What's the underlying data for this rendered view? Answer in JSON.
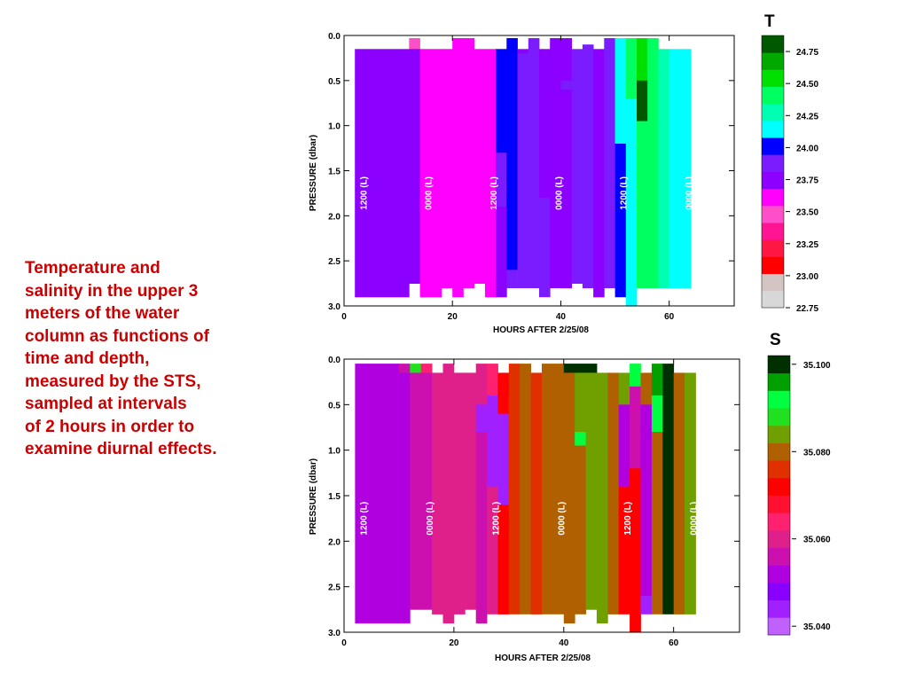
{
  "caption": {
    "lines": [
      "Temperature and",
      "salinity in the upper 3",
      "meters of the water",
      "column as functions of",
      "time and depth,",
      "measured by the STS,",
      "sampled at intervals",
      "of 2 hours in order to",
      "examine diurnal effects."
    ]
  },
  "chart_data": [
    {
      "type": "heatmap",
      "panel_label": "T",
      "xlabel": "HOURS AFTER 2/25/08",
      "ylabel": "PRESSURE (dbar)",
      "xlim": [
        0,
        72
      ],
      "ylim": [
        3.0,
        0.0
      ],
      "x_ticks": [
        "0",
        "20",
        "40",
        "60"
      ],
      "y_ticks": [
        "0.0",
        "0.5",
        "1.0",
        "1.5",
        "2.0",
        "2.5",
        "3.0"
      ],
      "time_markers": [
        {
          "x": 3.5,
          "label": "1200 (L)"
        },
        {
          "x": 15.5,
          "label": "0000 (L)"
        },
        {
          "x": 27.5,
          "label": "1200 (L)"
        },
        {
          "x": 39.5,
          "label": "0000 (L)"
        },
        {
          "x": 51.5,
          "label": "1200 (L)"
        },
        {
          "x": 63.5,
          "label": "0000 (L)"
        }
      ],
      "colorbar": {
        "min": 22.75,
        "max": 24.875,
        "labels": [
          "24.75",
          "24.50",
          "24.25",
          "24.00",
          "23.75",
          "23.50",
          "23.25",
          "23.00",
          "22.75"
        ],
        "colors": [
          "#d8d8d8",
          "#d4c4c4",
          "#ff0000",
          "#ff1744",
          "#ff1493",
          "#ff4fc8",
          "#ff00ff",
          "#8b00ff",
          "#7a1cff",
          "#0000ff",
          "#00ffff",
          "#00ffb0",
          "#00ff60",
          "#00e000",
          "#00a800",
          "#005800"
        ]
      },
      "columns": [
        {
          "x0": 2,
          "x1": 12,
          "top": 0.15,
          "bottom": 2.9,
          "segments": [
            {
              "to": 3.0,
              "v": 23.8
            }
          ]
        },
        {
          "x0": 12,
          "x1": 14,
          "top": 0.03,
          "bottom": 2.75,
          "segments": [
            {
              "to": 0.15,
              "v": 23.5
            },
            {
              "to": 3.0,
              "v": 23.8
            }
          ]
        },
        {
          "x0": 14,
          "x1": 18,
          "top": 0.15,
          "bottom": 2.9,
          "segments": [
            {
              "to": 3.0,
              "v": 23.55
            }
          ]
        },
        {
          "x0": 18,
          "x1": 20,
          "top": 0.15,
          "bottom": 2.8,
          "segments": [
            {
              "to": 3.0,
              "v": 23.55
            }
          ]
        },
        {
          "x0": 20,
          "x1": 22,
          "top": 0.03,
          "bottom": 2.9,
          "segments": [
            {
              "to": 3.0,
              "v": 23.55
            }
          ]
        },
        {
          "x0": 22,
          "x1": 24,
          "top": 0.03,
          "bottom": 2.8,
          "segments": [
            {
              "to": 3.0,
              "v": 23.55
            }
          ]
        },
        {
          "x0": 24,
          "x1": 26,
          "top": 0.15,
          "bottom": 2.75,
          "segments": [
            {
              "to": 3.0,
              "v": 23.55
            }
          ]
        },
        {
          "x0": 26,
          "x1": 28,
          "top": 0.15,
          "bottom": 2.9,
          "segments": [
            {
              "to": 3.0,
              "v": 23.6
            }
          ]
        },
        {
          "x0": 28,
          "x1": 30,
          "top": 0.15,
          "bottom": 2.9,
          "segments": [
            {
              "to": 1.3,
              "v": 24.05
            },
            {
              "to": 1.9,
              "v": 23.85
            },
            {
              "to": 3.0,
              "v": 23.8
            }
          ]
        },
        {
          "x0": 30,
          "x1": 32,
          "top": 0.03,
          "bottom": 2.8,
          "segments": [
            {
              "to": 2.6,
              "v": 24.05
            },
            {
              "to": 3.0,
              "v": 23.85
            }
          ]
        },
        {
          "x0": 32,
          "x1": 34,
          "top": 0.15,
          "bottom": 2.8,
          "segments": [
            {
              "to": 0.2,
              "v": 23.8
            },
            {
              "to": 3.0,
              "v": 23.88
            }
          ]
        },
        {
          "x0": 34,
          "x1": 36,
          "top": 0.03,
          "bottom": 2.8,
          "segments": [
            {
              "to": 3.0,
              "v": 23.88
            }
          ]
        },
        {
          "x0": 36,
          "x1": 38,
          "top": 0.15,
          "bottom": 2.9,
          "segments": [
            {
              "to": 1.8,
              "v": 23.8
            },
            {
              "to": 3.0,
              "v": 23.88
            }
          ]
        },
        {
          "x0": 38,
          "x1": 40,
          "top": 0.03,
          "bottom": 2.8,
          "segments": [
            {
              "to": 3.0,
              "v": 23.8
            }
          ]
        },
        {
          "x0": 40,
          "x1": 42,
          "top": 0.03,
          "bottom": 2.8,
          "segments": [
            {
              "to": 0.5,
              "v": 23.8
            },
            {
              "to": 0.6,
              "v": 23.88
            },
            {
              "to": 3.0,
              "v": 23.8
            }
          ]
        },
        {
          "x0": 42,
          "x1": 44,
          "top": 0.15,
          "bottom": 2.75,
          "segments": [
            {
              "to": 3.0,
              "v": 23.88
            }
          ]
        },
        {
          "x0": 44,
          "x1": 46,
          "top": 0.1,
          "bottom": 2.8,
          "segments": [
            {
              "to": 3.0,
              "v": 23.88
            }
          ]
        },
        {
          "x0": 46,
          "x1": 48,
          "top": 0.15,
          "bottom": 2.9,
          "segments": [
            {
              "to": 0.4,
              "v": 23.8
            },
            {
              "to": 3.0,
              "v": 23.8
            }
          ]
        },
        {
          "x0": 48,
          "x1": 50,
          "top": 0.03,
          "bottom": 2.8,
          "segments": [
            {
              "to": 0.15,
              "v": 23.88
            },
            {
              "to": 3.0,
              "v": 23.88
            }
          ]
        },
        {
          "x0": 50,
          "x1": 52,
          "top": 0.03,
          "bottom": 2.9,
          "segments": [
            {
              "to": 1.2,
              "v": 24.2
            },
            {
              "to": 3.0,
              "v": 24.05
            }
          ]
        },
        {
          "x0": 52,
          "x1": 54,
          "top": 0.03,
          "bottom": 3.0,
          "segments": [
            {
              "to": 0.7,
              "v": 24.45
            },
            {
              "to": 3.0,
              "v": 24.15
            }
          ]
        },
        {
          "x0": 54,
          "x1": 56,
          "top": 0.03,
          "bottom": 2.8,
          "segments": [
            {
              "to": 0.5,
              "v": 24.6
            },
            {
              "to": 0.95,
              "v": 24.8
            },
            {
              "to": 3.0,
              "v": 24.4
            }
          ]
        },
        {
          "x0": 56,
          "x1": 58,
          "top": 0.03,
          "bottom": 2.8,
          "segments": [
            {
              "to": 3.0,
              "v": 24.4
            }
          ]
        },
        {
          "x0": 58,
          "x1": 60,
          "top": 0.15,
          "bottom": 2.8,
          "segments": [
            {
              "to": 3.0,
              "v": 24.3
            }
          ]
        },
        {
          "x0": 60,
          "x1": 64,
          "top": 0.15,
          "bottom": 2.8,
          "segments": [
            {
              "to": 3.0,
              "v": 24.1
            }
          ]
        }
      ]
    },
    {
      "type": "heatmap",
      "panel_label": "S",
      "xlabel": "HOURS AFTER 2/25/08",
      "ylabel": "PRESSURE (dbar)",
      "xlim": [
        0,
        72
      ],
      "ylim": [
        3.0,
        0.0
      ],
      "x_ticks": [
        "0",
        "20",
        "40",
        "60"
      ],
      "y_ticks": [
        "0.0",
        "0.5",
        "1.0",
        "1.5",
        "2.0",
        "2.5",
        "3.0"
      ],
      "time_markers": [
        {
          "x": 3.5,
          "label": "1200 (L)"
        },
        {
          "x": 15.5,
          "label": "0000 (L)"
        },
        {
          "x": 27.5,
          "label": "1200 (L)"
        },
        {
          "x": 39.5,
          "label": "0000 (L)"
        },
        {
          "x": 51.5,
          "label": "1200 (L)"
        },
        {
          "x": 63.5,
          "label": "0000 (L)"
        }
      ],
      "colorbar": {
        "min": 35.038,
        "max": 35.102,
        "labels": [
          "35.100",
          "35.080",
          "35.060",
          "35.040"
        ],
        "colors": [
          "#c060ff",
          "#a020ff",
          "#8a00ff",
          "#b000e0",
          "#cc10b0",
          "#e0208a",
          "#ff2070",
          "#ff1030",
          "#ff0000",
          "#e03000",
          "#b06000",
          "#70a000",
          "#20e020",
          "#00ff40",
          "#00a000",
          "#003000"
        ]
      },
      "columns": [
        {
          "x0": 2,
          "x1": 10,
          "top": 0.05,
          "bottom": 2.9,
          "segments": [
            {
              "to": 3.0,
              "v": 35.052
            }
          ]
        },
        {
          "x0": 10,
          "x1": 12,
          "top": 0.05,
          "bottom": 2.9,
          "segments": [
            {
              "to": 0.15,
              "v": 35.056
            },
            {
              "to": 3.0,
              "v": 35.052
            }
          ]
        },
        {
          "x0": 12,
          "x1": 14,
          "top": 0.05,
          "bottom": 2.75,
          "segments": [
            {
              "to": 0.15,
              "v": 35.088
            },
            {
              "to": 3.0,
              "v": 35.054
            }
          ]
        },
        {
          "x0": 14,
          "x1": 16,
          "top": 0.05,
          "bottom": 2.75,
          "segments": [
            {
              "to": 0.15,
              "v": 35.064
            },
            {
              "to": 3.0,
              "v": 35.056
            }
          ]
        },
        {
          "x0": 16,
          "x1": 18,
          "top": 0.15,
          "bottom": 2.8,
          "segments": [
            {
              "to": 3.0,
              "v": 35.058
            }
          ]
        },
        {
          "x0": 18,
          "x1": 20,
          "top": 0.05,
          "bottom": 2.9,
          "segments": [
            {
              "to": 3.0,
              "v": 35.058
            }
          ]
        },
        {
          "x0": 20,
          "x1": 22,
          "top": 0.15,
          "bottom": 2.8,
          "segments": [
            {
              "to": 3.0,
              "v": 35.06
            }
          ]
        },
        {
          "x0": 22,
          "x1": 24,
          "top": 0.15,
          "bottom": 2.75,
          "segments": [
            {
              "to": 3.0,
              "v": 35.058
            }
          ]
        },
        {
          "x0": 24,
          "x1": 26,
          "top": 0.05,
          "bottom": 2.9,
          "segments": [
            {
              "to": 0.5,
              "v": 35.058
            },
            {
              "to": 0.8,
              "v": 35.044
            },
            {
              "to": 3.0,
              "v": 35.056
            }
          ]
        },
        {
          "x0": 26,
          "x1": 28,
          "top": 0.05,
          "bottom": 2.8,
          "segments": [
            {
              "to": 0.4,
              "v": 35.062
            },
            {
              "to": 1.4,
              "v": 35.042
            },
            {
              "to": 3.0,
              "v": 35.06
            }
          ]
        },
        {
          "x0": 28,
          "x1": 30,
          "top": 0.15,
          "bottom": 2.8,
          "segments": [
            {
              "to": 0.6,
              "v": 35.07
            },
            {
              "to": 1.6,
              "v": 35.044
            },
            {
              "to": 3.0,
              "v": 35.07
            }
          ]
        },
        {
          "x0": 30,
          "x1": 32,
          "top": 0.05,
          "bottom": 2.8,
          "segments": [
            {
              "to": 3.0,
              "v": 35.075
            }
          ]
        },
        {
          "x0": 32,
          "x1": 34,
          "top": 0.05,
          "bottom": 2.8,
          "segments": [
            {
              "to": 3.0,
              "v": 35.078
            }
          ]
        },
        {
          "x0": 34,
          "x1": 36,
          "top": 0.15,
          "bottom": 2.8,
          "segments": [
            {
              "to": 3.0,
              "v": 35.076
            }
          ]
        },
        {
          "x0": 36,
          "x1": 38,
          "top": 0.05,
          "bottom": 2.8,
          "segments": [
            {
              "to": 3.0,
              "v": 35.078
            }
          ]
        },
        {
          "x0": 38,
          "x1": 40,
          "top": 0.05,
          "bottom": 2.8,
          "segments": [
            {
              "to": 3.0,
              "v": 35.08
            }
          ]
        },
        {
          "x0": 40,
          "x1": 42,
          "top": 0.05,
          "bottom": 2.9,
          "segments": [
            {
              "to": 0.15,
              "v": 35.1
            },
            {
              "to": 3.0,
              "v": 35.08
            }
          ]
        },
        {
          "x0": 42,
          "x1": 44,
          "top": 0.05,
          "bottom": 2.8,
          "segments": [
            {
              "to": 0.15,
              "v": 35.1
            },
            {
              "to": 0.8,
              "v": 35.082
            },
            {
              "to": 0.95,
              "v": 35.092
            },
            {
              "to": 3.0,
              "v": 35.08
            }
          ]
        },
        {
          "x0": 44,
          "x1": 46,
          "top": 0.05,
          "bottom": 2.75,
          "segments": [
            {
              "to": 0.15,
              "v": 35.1
            },
            {
              "to": 3.0,
              "v": 35.083
            }
          ]
        },
        {
          "x0": 46,
          "x1": 48,
          "top": 0.15,
          "bottom": 2.9,
          "segments": [
            {
              "to": 3.0,
              "v": 35.085
            }
          ]
        },
        {
          "x0": 48,
          "x1": 50,
          "top": 0.15,
          "bottom": 2.8,
          "segments": [
            {
              "to": 3.0,
              "v": 35.08
            }
          ]
        },
        {
          "x0": 50,
          "x1": 52,
          "top": 0.15,
          "bottom": 2.8,
          "segments": [
            {
              "to": 0.5,
              "v": 35.085
            },
            {
              "to": 1.4,
              "v": 35.05
            },
            {
              "to": 3.0,
              "v": 35.072
            }
          ]
        },
        {
          "x0": 52,
          "x1": 54,
          "top": 0.05,
          "bottom": 3.0,
          "segments": [
            {
              "to": 0.3,
              "v": 35.09
            },
            {
              "to": 1.2,
              "v": 35.055
            },
            {
              "to": 3.0,
              "v": 35.07
            }
          ]
        },
        {
          "x0": 54,
          "x1": 56,
          "top": 0.15,
          "bottom": 2.8,
          "segments": [
            {
              "to": 0.5,
              "v": 35.078
            },
            {
              "to": 2.6,
              "v": 35.05
            },
            {
              "to": 3.0,
              "v": 35.044
            }
          ]
        },
        {
          "x0": 56,
          "x1": 58,
          "top": 0.05,
          "bottom": 2.8,
          "segments": [
            {
              "to": 0.4,
              "v": 35.094
            },
            {
              "to": 0.8,
              "v": 35.09
            },
            {
              "to": 3.0,
              "v": 35.079
            }
          ]
        },
        {
          "x0": 58,
          "x1": 60,
          "top": 0.05,
          "bottom": 2.8,
          "segments": [
            {
              "to": 3.0,
              "v": 35.1
            }
          ]
        },
        {
          "x0": 60,
          "x1": 62,
          "top": 0.15,
          "bottom": 2.8,
          "segments": [
            {
              "to": 3.0,
              "v": 35.08
            }
          ]
        },
        {
          "x0": 62,
          "x1": 64,
          "top": 0.15,
          "bottom": 2.8,
          "segments": [
            {
              "to": 3.0,
              "v": 35.084
            }
          ]
        }
      ]
    }
  ]
}
